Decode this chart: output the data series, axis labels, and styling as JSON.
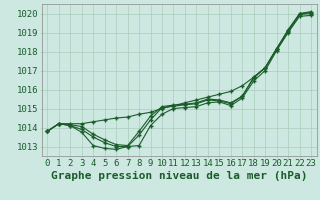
{
  "title": "Graphe pression niveau de la mer (hPa)",
  "yticks": [
    1013,
    1014,
    1015,
    1016,
    1017,
    1018,
    1019,
    1020
  ],
  "ylim": [
    1012.5,
    1020.5
  ],
  "xlim": [
    -0.5,
    23.5
  ],
  "background_color": "#cce8e0",
  "grid_color": "#aaccbb",
  "line_color": "#1a5c2a",
  "line1": [
    1013.8,
    1014.2,
    1014.1,
    1013.75,
    1013.05,
    1012.9,
    1012.85,
    1013.0,
    1013.05,
    1014.1,
    1014.7,
    1015.0,
    1015.05,
    1015.1,
    1015.3,
    1015.35,
    1015.15,
    1015.55,
    1016.45,
    1017.0,
    1018.05,
    1019.0,
    1019.85,
    1019.9
  ],
  "line2": [
    1013.8,
    1014.2,
    1014.1,
    1013.9,
    1013.5,
    1013.2,
    1013.0,
    1013.0,
    1013.6,
    1014.4,
    1015.05,
    1015.12,
    1015.2,
    1015.25,
    1015.45,
    1015.4,
    1015.25,
    1015.65,
    1016.6,
    1017.15,
    1018.15,
    1019.05,
    1019.95,
    1020.0
  ],
  "line3": [
    1013.8,
    1014.2,
    1014.15,
    1014.05,
    1013.65,
    1013.35,
    1013.1,
    1013.05,
    1013.8,
    1014.6,
    1015.1,
    1015.18,
    1015.22,
    1015.3,
    1015.5,
    1015.45,
    1015.3,
    1015.65,
    1016.65,
    1017.15,
    1018.15,
    1019.1,
    1019.98,
    1020.05
  ],
  "line4_no_dip": [
    1013.8,
    1014.2,
    1014.2,
    1014.2,
    1014.3,
    1014.4,
    1014.5,
    1014.55,
    1014.7,
    1014.8,
    1015.0,
    1015.15,
    1015.3,
    1015.45,
    1015.6,
    1015.75,
    1015.9,
    1016.2,
    1016.65,
    1017.15,
    1018.15,
    1019.15,
    1020.0,
    1020.1
  ],
  "title_fontsize": 8,
  "tick_fontsize": 6.5
}
